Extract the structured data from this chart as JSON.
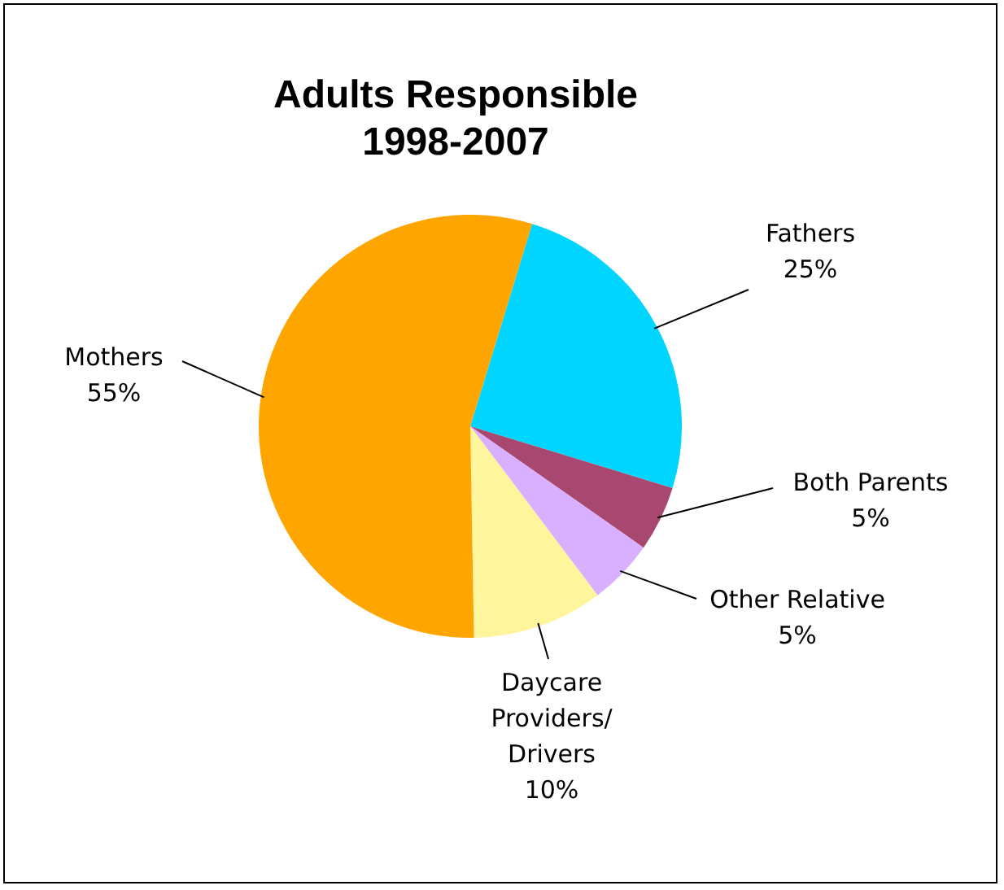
{
  "chart_data": {
    "type": "pie",
    "title": "Adults Responsible\n1998-2007",
    "categories": [
      "Fathers",
      "Both Parents",
      "Other Relative",
      "Daycare Providers/ Drivers",
      "Mothers"
    ],
    "values": [
      25,
      5,
      5,
      10,
      55
    ],
    "value_labels": [
      "25%",
      "5%",
      "5%",
      "10%",
      "55%"
    ],
    "colors": [
      "#00d5ff",
      "#a8476f",
      "#d9b0ff",
      "#fff59d",
      "#ffa500"
    ],
    "legend": false
  }
}
